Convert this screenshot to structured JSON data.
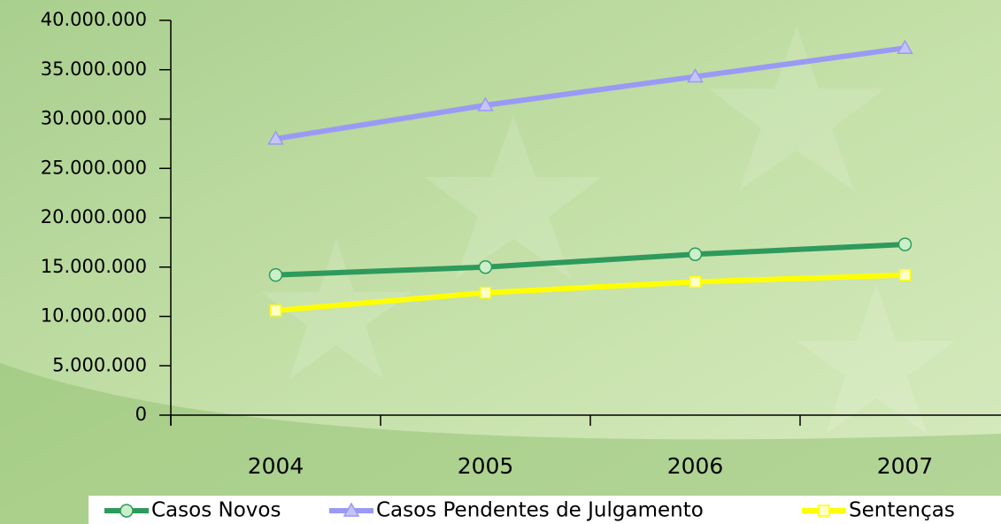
{
  "chart_data": {
    "type": "line",
    "categories": [
      "2004",
      "2005",
      "2006",
      "2007"
    ],
    "series": [
      {
        "name": "Casos Novos",
        "color": "#2e9a5c",
        "marker": "circle",
        "values": [
          14200000,
          15000000,
          16300000,
          17300000
        ]
      },
      {
        "name": "Casos Pendentes de Julgamento",
        "color": "#9a9af5",
        "marker": "triangle",
        "values": [
          28000000,
          31400000,
          34300000,
          37200000
        ]
      },
      {
        "name": "Sentenças",
        "color": "#ffff00",
        "marker": "square",
        "values": [
          10600000,
          12400000,
          13500000,
          14200000
        ]
      }
    ],
    "ylim": [
      0,
      40000000
    ],
    "yticks": [
      {
        "value": 0,
        "label": "0"
      },
      {
        "value": 5000000,
        "label": "5.000.000"
      },
      {
        "value": 10000000,
        "label": "10.000.000"
      },
      {
        "value": 15000000,
        "label": "15.000.000"
      },
      {
        "value": 20000000,
        "label": "20.000.000"
      },
      {
        "value": 25000000,
        "label": "25.000.000"
      },
      {
        "value": 30000000,
        "label": "30.000.000"
      },
      {
        "value": 35000000,
        "label": "35.000.000"
      },
      {
        "value": 40000000,
        "label": "40.000.000"
      }
    ],
    "legend": "bottom"
  }
}
